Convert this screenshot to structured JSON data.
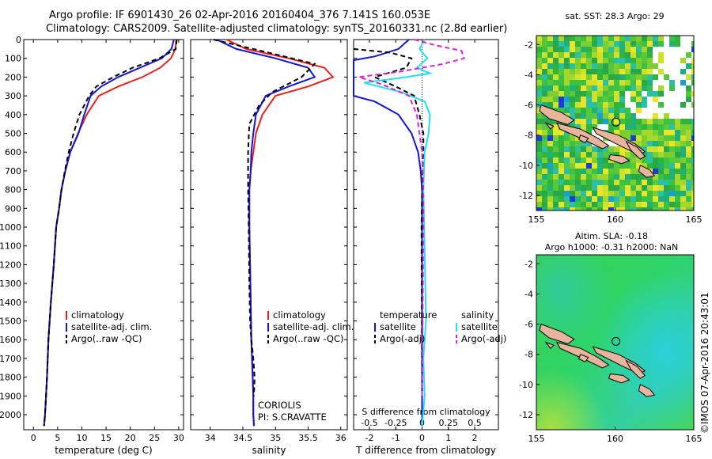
{
  "header": {
    "line1": "Argo profile: IF 6901430_26 02-Apr-2016 20160404_376 7.141S 160.053E",
    "line2": "Climatology: CARS2009. Satellite-adjusted climatology: synTS_20160331.nc (2.8d earlier)"
  },
  "institution": {
    "line1": "CORIOLIS",
    "line2": "PI: S.CRAVATTE"
  },
  "stamp": "©IMOS 07-Apr-2016 20:43:01",
  "colors": {
    "climatology": "#e8211b",
    "satellite": "#1414d8",
    "argo": "#000000",
    "sat_salinity": "#22e0f0",
    "argo_salinity": "#e020d8"
  },
  "legends": {
    "temperature": [
      "climatology",
      "satellite-adj. clim.",
      "Argo(..raw -QC)"
    ],
    "salinity": [
      "climatology",
      "satellite-adj. clim.",
      "Argo(..raw -QC)"
    ],
    "difference_headers": [
      "temperature",
      "salinity"
    ],
    "difference_items": [
      "satellite",
      "Argo(-adj)",
      "satellite",
      "Argo(-adj)"
    ]
  },
  "chart_data": [
    {
      "type": "line",
      "panel": "temperature",
      "xlabel": "temperature (deg C)",
      "ylabel": "",
      "xlim": [
        -2,
        31
      ],
      "ylim": [
        2080,
        0
      ],
      "xticks": [
        "0",
        "5",
        "10",
        "15",
        "20",
        "25",
        "30"
      ],
      "xtick_values": [
        0,
        5,
        10,
        15,
        20,
        25,
        30
      ],
      "yticks": [
        "0",
        "100",
        "200",
        "300",
        "400",
        "500",
        "600",
        "700",
        "800",
        "900",
        "1000",
        "1100",
        "1200",
        "1300",
        "1400",
        "1500",
        "1600",
        "1700",
        "1800",
        "1900",
        "2000"
      ],
      "ytick_values": [
        0,
        100,
        200,
        300,
        400,
        500,
        600,
        700,
        800,
        900,
        1000,
        1100,
        1200,
        1300,
        1400,
        1500,
        1600,
        1700,
        1800,
        1900,
        2000
      ],
      "series": [
        {
          "name": "climatology",
          "color": "#e8211b",
          "dash": "",
          "x": [
            29.5,
            29.3,
            28.4,
            26.2,
            22.5,
            17.5,
            13.5,
            11.0,
            9.2,
            7.6,
            6.6,
            5.8,
            5.3,
            4.7,
            4.2,
            3.6,
            3.1,
            2.8,
            2.6,
            2.4,
            2.2
          ],
          "y": [
            0,
            50,
            100,
            150,
            200,
            250,
            300,
            400,
            500,
            600,
            700,
            800,
            900,
            1000,
            1200,
            1400,
            1600,
            1800,
            1900,
            2000,
            2060
          ]
        },
        {
          "name": "satellite-adj. clim.",
          "color": "#1414d8",
          "dash": "",
          "x": [
            29.0,
            28.5,
            26.5,
            22.0,
            17.5,
            14.0,
            11.8,
            10.5,
            9.3,
            7.6,
            6.6,
            5.8,
            5.3,
            4.7,
            4.2,
            3.6,
            3.1,
            2.8,
            2.6,
            2.4,
            2.2
          ],
          "y": [
            0,
            50,
            100,
            150,
            200,
            250,
            300,
            400,
            500,
            600,
            700,
            800,
            900,
            1000,
            1200,
            1400,
            1600,
            1800,
            1900,
            2000,
            2060
          ]
        },
        {
          "name": "Argo(..raw -QC)",
          "color": "#000000",
          "dash": "6,4",
          "x": [
            29.6,
            29.4,
            26.0,
            20.5,
            16.5,
            13.0,
            11.5,
            9.5,
            8.3,
            7.3,
            6.5,
            5.8,
            5.3,
            4.7,
            4.2,
            3.6,
            3.1,
            2.8,
            2.6,
            2.4,
            2.2
          ],
          "y": [
            0,
            50,
            100,
            150,
            200,
            250,
            300,
            400,
            500,
            600,
            700,
            800,
            900,
            1000,
            1200,
            1400,
            1600,
            1800,
            1900,
            2000,
            2060
          ]
        }
      ]
    },
    {
      "type": "line",
      "panel": "salinity",
      "xlabel": "salinity",
      "ylabel": "",
      "xlim": [
        33.7,
        36.1
      ],
      "ylim": [
        2080,
        0
      ],
      "xticks": [
        "34",
        "34.5",
        "35",
        "35.5",
        "36"
      ],
      "xtick_values": [
        34,
        34.5,
        35,
        35.5,
        36
      ],
      "series": [
        {
          "name": "climatology",
          "color": "#e8211b",
          "dash": "",
          "x": [
            34.25,
            34.55,
            35.2,
            35.75,
            35.88,
            35.5,
            35.0,
            34.8,
            34.7,
            34.66,
            34.62,
            34.6,
            34.6,
            34.61,
            34.62,
            34.63,
            34.65,
            34.66,
            34.66,
            34.67
          ],
          "y": [
            0,
            50,
            100,
            150,
            200,
            250,
            300,
            400,
            500,
            600,
            700,
            800,
            1000,
            1200,
            1400,
            1600,
            1800,
            1900,
            2000,
            2060
          ]
        },
        {
          "name": "satellite-adj. clim.",
          "color": "#1414d8",
          "dash": "",
          "x": [
            34.1,
            34.4,
            35.0,
            35.5,
            35.6,
            35.2,
            34.85,
            34.7,
            34.66,
            34.63,
            34.62,
            34.6,
            34.6,
            34.61,
            34.62,
            34.63,
            34.65,
            34.66,
            34.66,
            34.67
          ],
          "y": [
            0,
            50,
            100,
            150,
            200,
            250,
            300,
            400,
            500,
            600,
            700,
            800,
            1000,
            1200,
            1400,
            1600,
            1800,
            1900,
            2000,
            2060
          ]
        },
        {
          "name": "Argo(..raw -QC)",
          "color": "#000000",
          "dash": "6,4",
          "x": [
            34.05,
            34.9,
            35.6,
            35.4,
            34.95,
            34.75,
            34.6,
            34.58,
            34.58,
            34.59,
            34.6,
            34.61,
            34.63,
            34.66,
            34.68,
            34.67
          ],
          "y": [
            0,
            70,
            130,
            200,
            280,
            350,
            450,
            600,
            800,
            1000,
            1300,
            1500,
            1600,
            1700,
            1800,
            1900
          ]
        }
      ]
    },
    {
      "type": "line",
      "panel": "difference",
      "xlabel": "T difference from climatology",
      "ylabel": "",
      "xlim": [
        -2.6,
        2.9
      ],
      "ylim": [
        2080,
        0
      ],
      "xticks": [
        "-2",
        "-1",
        "0",
        "1",
        "2"
      ],
      "xtick_values": [
        -2,
        -1,
        0,
        1,
        2
      ],
      "top_axis_label": "S difference from climatology",
      "top_axis_ticks": [
        "-0.5",
        "-0.25",
        "0",
        "0.25",
        "0.5"
      ],
      "top_axis_values": [
        -0.5,
        -0.25,
        0,
        0.25,
        0.5
      ],
      "series": [
        {
          "name": "temperature satellite",
          "color": "#1414d8",
          "dash": "",
          "x": [
            -0.5,
            -0.9,
            -1.8,
            -2.6,
            -2.6,
            -1.8,
            -0.9,
            -0.4,
            -0.15,
            -0.05,
            0,
            0,
            0,
            0,
            0
          ],
          "y": [
            0,
            50,
            90,
            110,
            300,
            330,
            400,
            500,
            600,
            700,
            800,
            1000,
            1400,
            1800,
            2060
          ]
        },
        {
          "name": "temperature Argo(-adj)",
          "color": "#000000",
          "dash": "6,4",
          "x": [
            -2.6,
            -1.2,
            -0.4,
            -0.6,
            -1.8,
            -1.0,
            -0.3,
            -0.1,
            0.05,
            0.05,
            0.02,
            0,
            -0.02,
            0
          ],
          "y": [
            50,
            70,
            100,
            150,
            200,
            250,
            300,
            400,
            500,
            600,
            700,
            800,
            1000,
            1900
          ]
        },
        {
          "name": "salinity satellite",
          "color": "#22e0f0",
          "dash": "",
          "x": [
            0.1,
            -0.1,
            0.2,
            -0.2,
            0.3,
            -0.6,
            -2.2,
            -0.8,
            0.1,
            0.3,
            0.25,
            0.1,
            0.05,
            0.08,
            0.15,
            0.05,
            0.1,
            0
          ],
          "y": [
            0,
            50,
            100,
            150,
            180,
            200,
            230,
            280,
            330,
            400,
            500,
            600,
            800,
            1000,
            1500,
            1700,
            1900,
            2060
          ]
        },
        {
          "name": "salinity Argo(-adj)",
          "color": "#e020d8",
          "dash": "6,4",
          "x": [
            -0.3,
            0.5,
            1.5,
            1.6,
            0.8,
            -0.8,
            -2.4,
            -1.5,
            -0.5,
            -0.2,
            -0.1,
            0,
            0.05,
            0.05,
            0
          ],
          "y": [
            0,
            30,
            60,
            100,
            130,
            170,
            200,
            240,
            300,
            400,
            500,
            600,
            800,
            1000,
            1900
          ]
        }
      ]
    }
  ],
  "maps": {
    "sst": {
      "title": "sat. SST: 28.3 Argo: 29",
      "xticks": [
        "155",
        "160",
        "165"
      ],
      "xtick_values": [
        155,
        160,
        165
      ],
      "yticks": [
        "-2",
        "-4",
        "-6",
        "-8",
        "-10",
        "-12"
      ],
      "ytick_values": [
        -2,
        -4,
        -6,
        -8,
        -10,
        -12
      ],
      "xlim": [
        155,
        165
      ],
      "ylim": [
        -13,
        -1.4
      ],
      "marker": {
        "lon": 160.053,
        "lat": -7.141
      }
    },
    "sla": {
      "title1": "Altim. SLA: -0.18",
      "title2": "Argo h1000: -0.31 h2000: NaN",
      "xticks": [
        "155",
        "160",
        "165"
      ],
      "xtick_values": [
        155,
        160,
        165
      ],
      "yticks": [
        "-2",
        "-4",
        "-6",
        "-8",
        "-10",
        "-12"
      ],
      "ytick_values": [
        -2,
        -4,
        -6,
        -8,
        -10,
        -12
      ],
      "xlim": [
        155,
        165
      ],
      "ylim": [
        -13,
        -1.4
      ],
      "marker": {
        "lon": 160.053,
        "lat": -7.141
      }
    }
  }
}
